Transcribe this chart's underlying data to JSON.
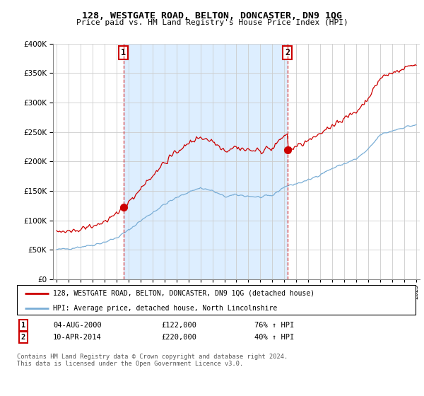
{
  "title": "128, WESTGATE ROAD, BELTON, DONCASTER, DN9 1QG",
  "subtitle": "Price paid vs. HM Land Registry's House Price Index (HPI)",
  "legend_line1": "128, WESTGATE ROAD, BELTON, DONCASTER, DN9 1QG (detached house)",
  "legend_line2": "HPI: Average price, detached house, North Lincolnshire",
  "annotation1_label": "1",
  "annotation1_date": "04-AUG-2000",
  "annotation1_price": "£122,000",
  "annotation1_hpi": "76% ↑ HPI",
  "annotation2_label": "2",
  "annotation2_date": "10-APR-2014",
  "annotation2_price": "£220,000",
  "annotation2_hpi": "40% ↑ HPI",
  "footer": "Contains HM Land Registry data © Crown copyright and database right 2024.\nThis data is licensed under the Open Government Licence v3.0.",
  "red_color": "#cc0000",
  "blue_color": "#7aaed6",
  "shade_color": "#ddeeff",
  "ylim": [
    0,
    400000
  ],
  "yticks": [
    0,
    50000,
    100000,
    150000,
    200000,
    250000,
    300000,
    350000,
    400000
  ],
  "sale1_x": 2000.58,
  "sale1_y": 122000,
  "sale2_x": 2014.27,
  "sale2_y": 220000,
  "xlim_left": 1994.7,
  "xlim_right": 2025.3
}
